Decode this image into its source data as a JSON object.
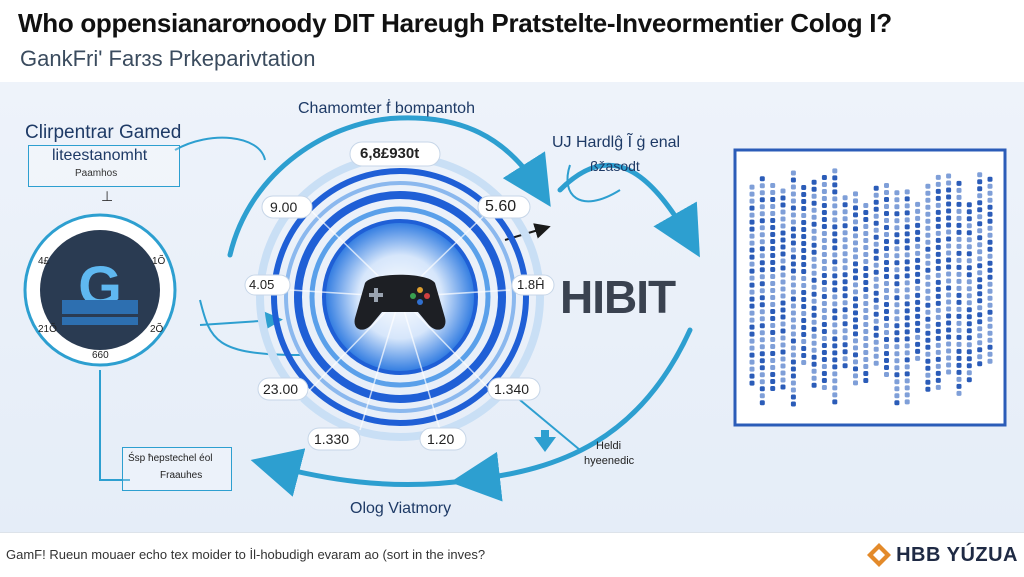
{
  "header": {
    "title": "Who oppensianarơnoody DIT Hareugh Pratstelte-Inveormentier Colog I?",
    "subtitle": "GankFri' Farɜs Prkeparivtation"
  },
  "diagram": {
    "center_label": "Chamomter ḟ bompantoh",
    "top_value": "6,8£930t",
    "left_box": {
      "line1": "Clirpentrar Gamed",
      "line2": "liteestanomht",
      "line3": "Paamhos"
    },
    "right_heading": {
      "line1": "UJ Hardlĝ Ĩ ġ enal",
      "line2": "ßžasodt"
    },
    "values": {
      "v_top_left": "9.00",
      "v_top_right": "5.60",
      "v_mid_left": "4.05",
      "v_mid_right": "1.8Ĥ",
      "v_low_left": "23.00",
      "v_low_right": "1.340",
      "v_bot_left": "1.330",
      "v_bot_right": "1.20"
    },
    "small_left": {
      "a": "4£",
      "b": "1Õ",
      "c": "21Õ",
      "d": "2Õ",
      "e": "660"
    },
    "big_text": "HIBIT",
    "bottom_left_box": {
      "line1": "Śsp ħepstechel éol",
      "line2": "Fraauhes"
    },
    "bottom_right_label": {
      "line1": "Heldi",
      "line2": "hyeenedic"
    },
    "bottom_caption": "Olog Viatmory"
  },
  "footer": {
    "text": "GamF! Rueun mouaer echo tex moider to İl-hobudigh evaram ao (sort in the inves?",
    "brand": "HBB YÚZUA"
  },
  "colors": {
    "accent": "#2d9fd0",
    "ring": "#1f5fd6",
    "dark": "#1f2a44"
  }
}
